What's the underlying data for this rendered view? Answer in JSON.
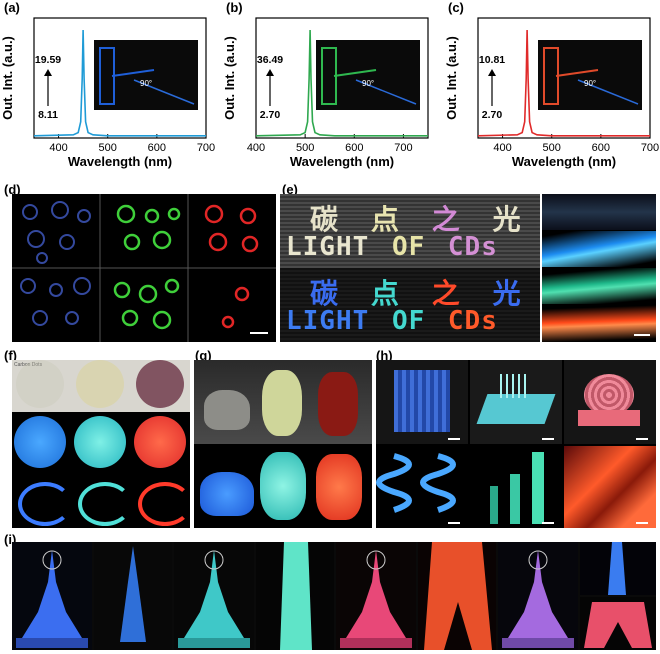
{
  "labels": {
    "a": "(a)",
    "b": "(b)",
    "c": "(c)",
    "d": "(d)",
    "e": "(e)",
    "f": "(f)",
    "g": "(g)",
    "h": "(h)",
    "i": "(i)"
  },
  "chart_data": [
    {
      "type": "line",
      "panel": "a",
      "color": "#1f9bd6",
      "xlabel": "Wavelength (nm)",
      "ylabel": "Out. Int. (a.u.)",
      "xlim": [
        350,
        700
      ],
      "xticks": [
        400,
        500,
        600,
        700
      ],
      "x": [
        350,
        430,
        440,
        445,
        448,
        450,
        452,
        455,
        460,
        470,
        500,
        600,
        700
      ],
      "y": [
        0.02,
        0.03,
        0.05,
        0.15,
        0.55,
        1.0,
        0.55,
        0.15,
        0.05,
        0.03,
        0.02,
        0.02,
        0.02
      ],
      "annotation_top": "19.59",
      "annotation_bottom": "8.11"
    },
    {
      "type": "line",
      "panel": "b",
      "color": "#2fa84f",
      "xlabel": "Wavelength (nm)",
      "ylabel": "Out. Int. (a.u.)",
      "xlim": [
        400,
        750
      ],
      "xticks": [
        400,
        500,
        600,
        700
      ],
      "x": [
        400,
        490,
        500,
        505,
        508,
        510,
        512,
        515,
        520,
        530,
        560,
        650,
        750
      ],
      "y": [
        0.02,
        0.03,
        0.05,
        0.15,
        0.55,
        1.0,
        0.55,
        0.15,
        0.05,
        0.03,
        0.02,
        0.02,
        0.02
      ],
      "annotation_top": "36.49",
      "annotation_bottom": "2.70"
    },
    {
      "type": "line",
      "panel": "c",
      "color": "#e02a2a",
      "xlabel": "Wavelength (nm)",
      "ylabel": "Out. Int. (a.u.)",
      "xlim": [
        350,
        700
      ],
      "xticks": [
        400,
        500,
        600,
        700
      ],
      "x": [
        350,
        430,
        440,
        445,
        448,
        450,
        452,
        455,
        460,
        470,
        500,
        600,
        700
      ],
      "y": [
        0.02,
        0.03,
        0.05,
        0.15,
        0.55,
        1.0,
        0.55,
        0.15,
        0.05,
        0.03,
        0.02,
        0.02,
        0.02
      ],
      "annotation_top": "10.81",
      "annotation_bottom": "2.70"
    }
  ],
  "inset_angle": "90°",
  "panel_e": {
    "line1_cn": [
      "碳",
      "点",
      "之",
      "光"
    ],
    "line1_en": [
      "LIGHT",
      "OF",
      "CDs"
    ],
    "line2_cn": [
      "碳",
      "点",
      "之",
      "光"
    ],
    "line2_en": [
      "LIGHT",
      "OF",
      "CDs"
    ]
  },
  "panel_f": {
    "label_text": "Carbon Dots"
  }
}
